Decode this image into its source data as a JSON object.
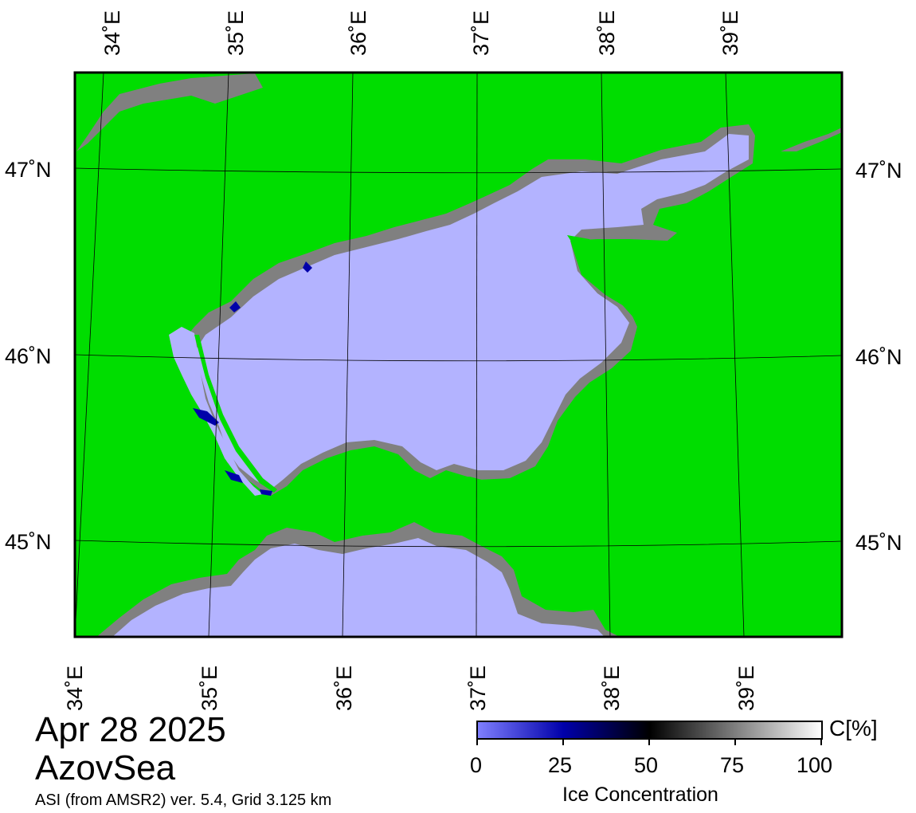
{
  "map": {
    "date": "Apr 28 2025",
    "region": "AzovSea",
    "product": "ASI (from AMSR2) ver. 5.4,  Grid 3.125 km",
    "colors": {
      "land": "#00dd00",
      "open_water": "#b3b3ff",
      "coast_mask": "#808080",
      "frame": "#000000"
    },
    "longitude_labels": [
      "34˚E",
      "35˚E",
      "36˚E",
      "37˚E",
      "38˚E",
      "39˚E"
    ],
    "latitude_labels": [
      "47˚N",
      "46˚N",
      "45˚N"
    ],
    "grid": true
  },
  "colorbar": {
    "title": "Ice Concentration",
    "unit": "C[%]",
    "ticks": [
      "0",
      "25",
      "50",
      "75",
      "100"
    ],
    "range": [
      0,
      100
    ],
    "stops": [
      {
        "value": 0,
        "color": "#8080ff"
      },
      {
        "value": 25,
        "color": "#0000aa"
      },
      {
        "value": 50,
        "color": "#000000"
      },
      {
        "value": 100,
        "color": "#ffffff"
      }
    ]
  }
}
